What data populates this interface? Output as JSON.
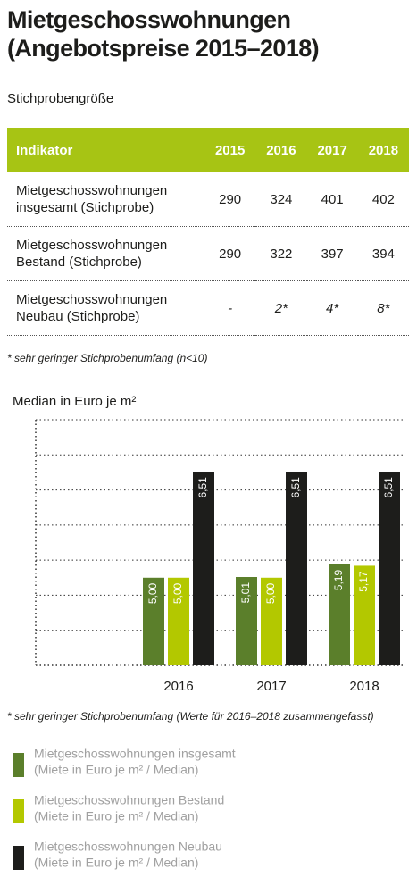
{
  "header": {
    "title_lines": [
      "Mietgeschosswohnungen",
      "(Angebotspreise 2015–2018)"
    ],
    "subtitle": "Stichprobengröße"
  },
  "table": {
    "columns": [
      "Indikator",
      "2015",
      "2016",
      "2017",
      "2018"
    ],
    "rows": [
      [
        "Mietgeschosswohnungen insgesamt (Stichprobe)",
        "290",
        "324",
        "401",
        "402"
      ],
      [
        "Mietgeschosswohnungen Bestand (Stichprobe)",
        "290",
        "322",
        "397",
        "394"
      ],
      [
        "Mietgeschosswohnungen Neubau (Stichprobe)",
        "-",
        "2*",
        "4*",
        "8*"
      ]
    ],
    "footnote": "* sehr geringer Stichprobenumfang (n<10)"
  },
  "chart_data": {
    "type": "bar",
    "title": "Median in Euro je m²",
    "categories": [
      "2016",
      "2017",
      "2018"
    ],
    "series": [
      {
        "name": "Mietgeschosswohnungen insgesamt",
        "color": "#5b7f2b",
        "values": [
          5.0,
          5.01,
          5.19
        ],
        "value_labels": [
          "5,00",
          "5,01",
          "5,19"
        ]
      },
      {
        "name": "Mietgeschosswohnungen Bestand",
        "color": "#b3c800",
        "values": [
          5.0,
          5.0,
          5.17
        ],
        "value_labels": [
          "5,00",
          "5,00",
          "5,17"
        ]
      },
      {
        "name": "Mietgeschosswohnungen Neubau",
        "color": "#1d1d1b",
        "values": [
          6.51,
          6.51,
          6.51
        ],
        "value_labels": [
          "6,51",
          "6,51",
          "6,51"
        ]
      }
    ],
    "ylim": [
      3.75,
      7.25
    ],
    "yticks": [
      3.75,
      4.25,
      4.75,
      5.25,
      5.75,
      6.25,
      6.75,
      7.25
    ],
    "grid": true,
    "footnote": "* sehr geringer Stichprobenumfang (Werte für 2016–2018 zusammengefasst)",
    "legend_note": "(Miete in Euro je m² / Median)"
  }
}
